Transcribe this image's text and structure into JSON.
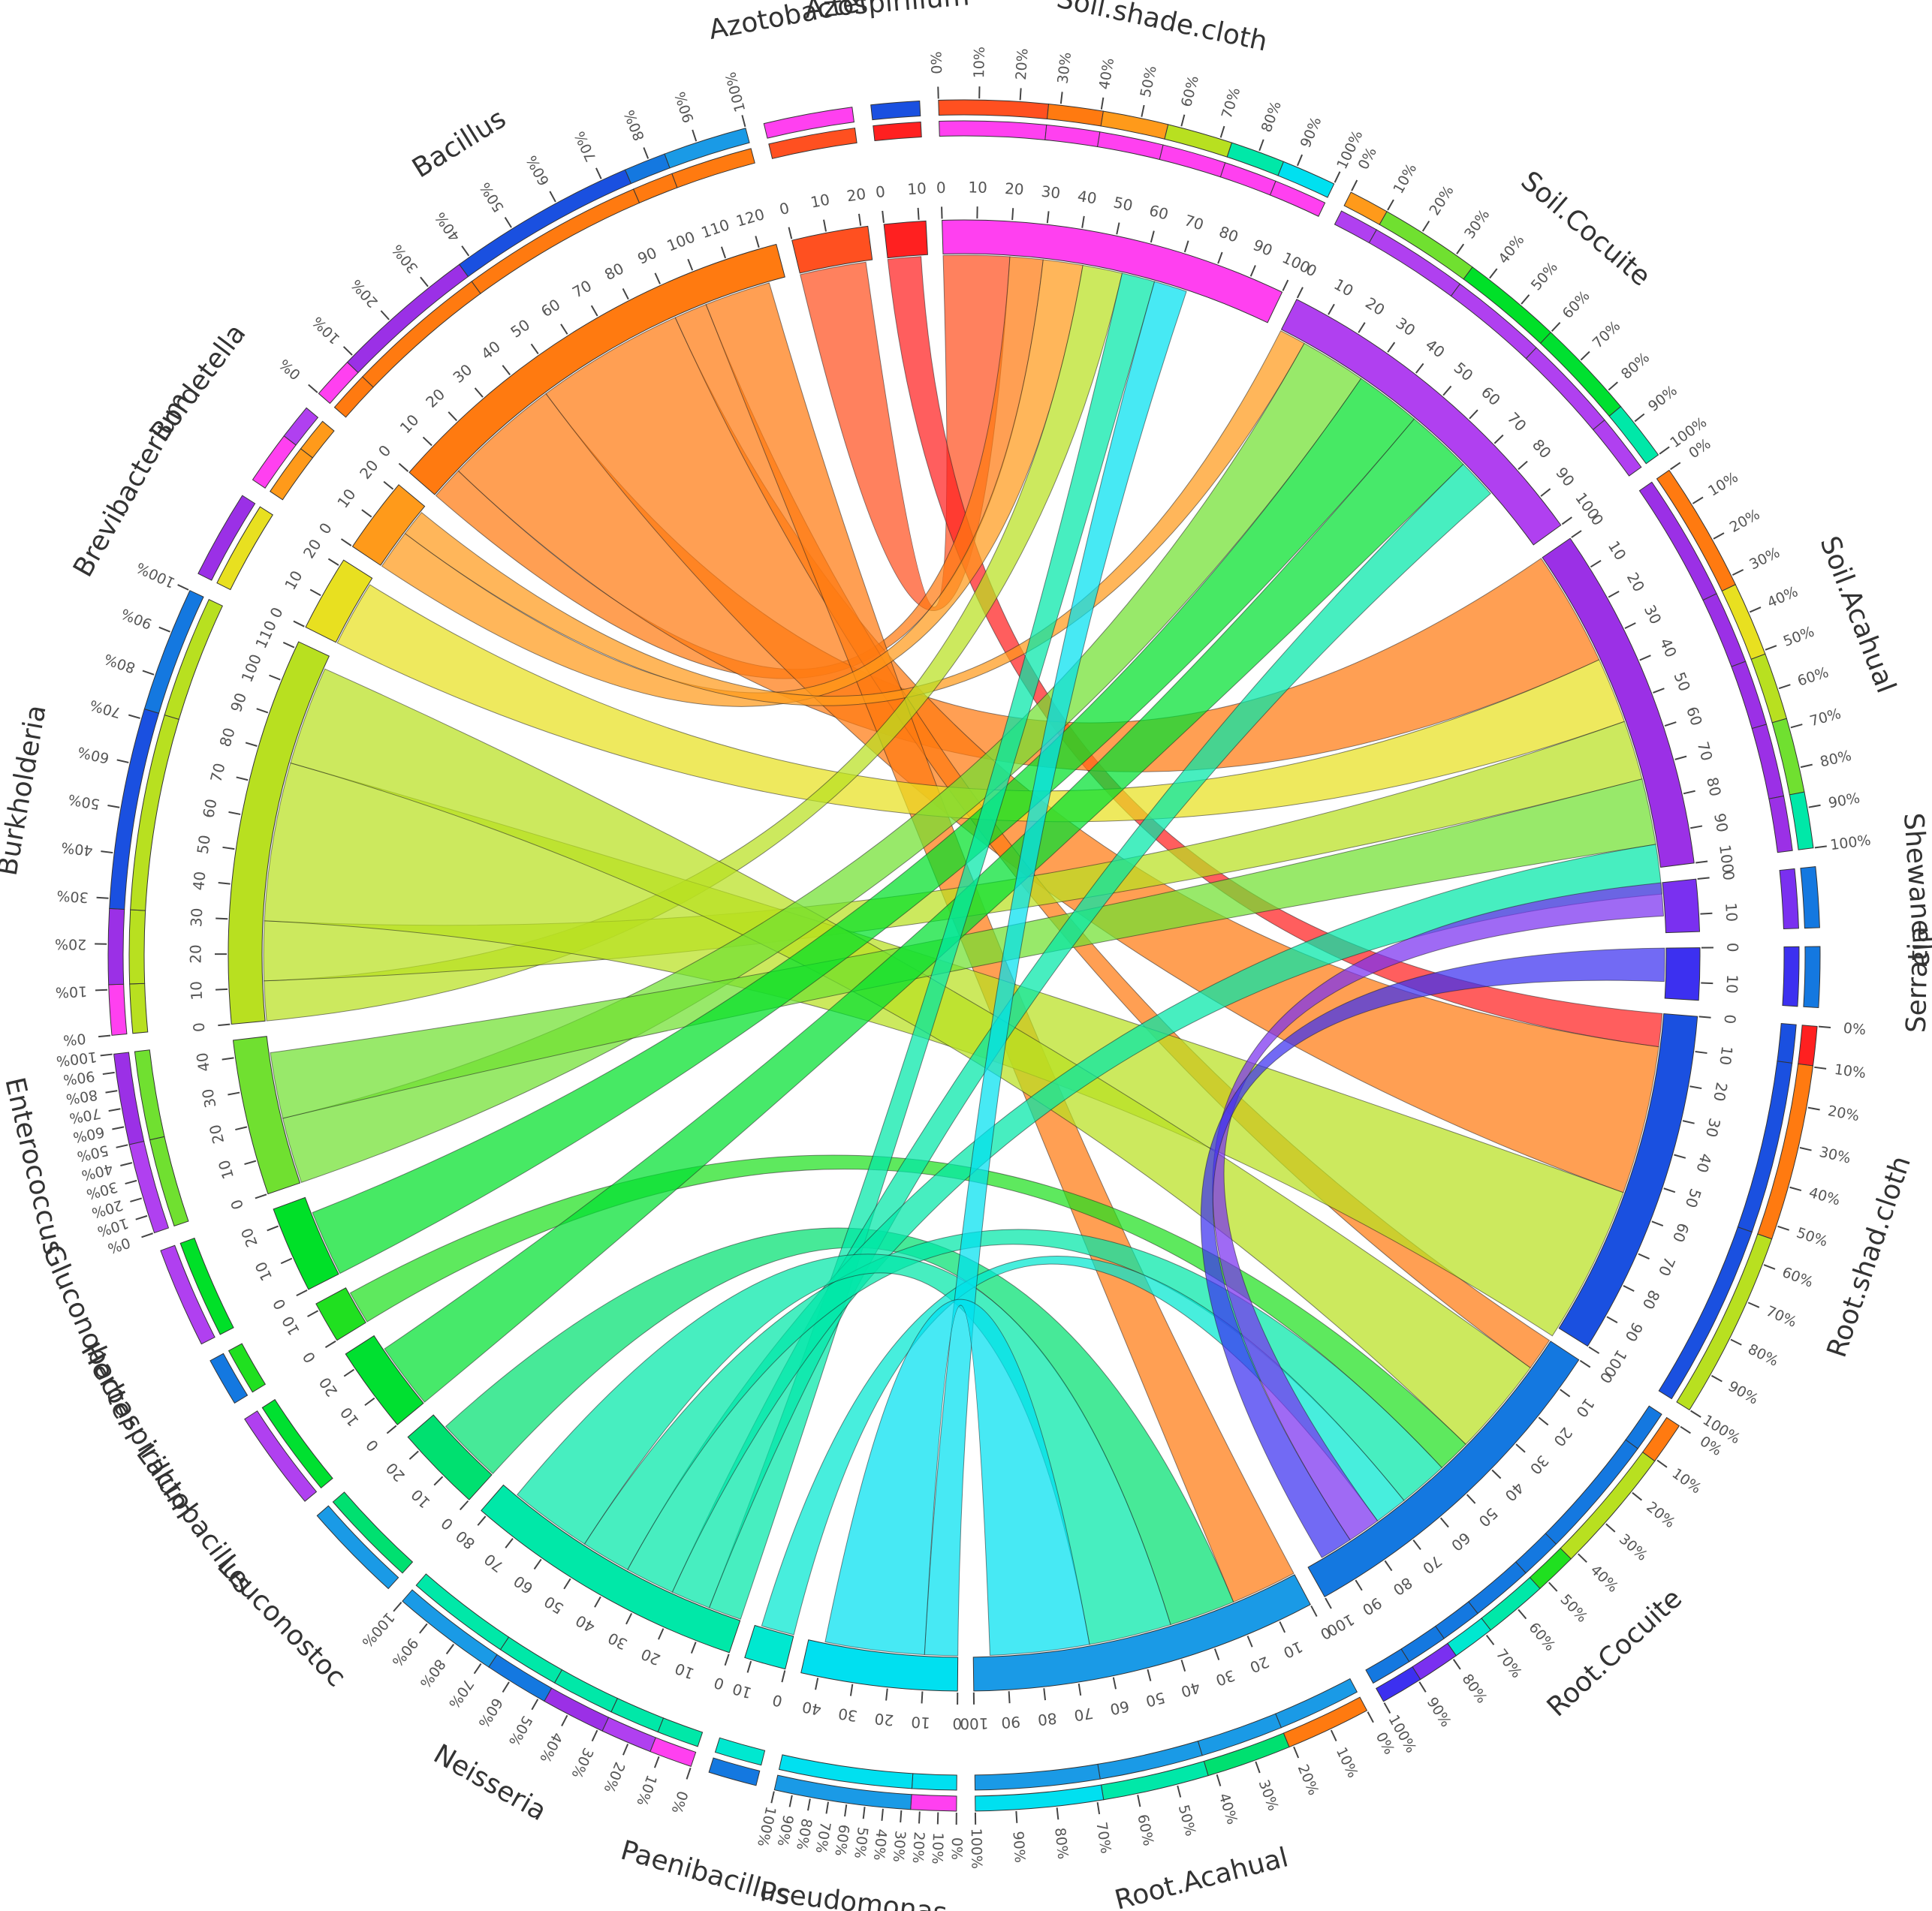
{
  "chart_data": {
    "type": "chord",
    "title": "",
    "segments": [
      {
        "id": "Soil.shade.cloth",
        "label": "Soil.shade.cloth",
        "group": "sample",
        "total": 100,
        "color": "#ff40f0"
      },
      {
        "id": "Soil.Cocuite",
        "label": "Soil.Cocuite",
        "group": "sample",
        "total": 100,
        "color": "#b040f0"
      },
      {
        "id": "Soil.Acahual",
        "label": "Soil.Acahual",
        "group": "sample",
        "total": 100,
        "color": "#9b30e6"
      },
      {
        "id": "Shewanella",
        "label": "Shewanella",
        "group": "genus",
        "total": 15,
        "color": "#7a30f0"
      },
      {
        "id": "Serratia",
        "label": "Serratia",
        "group": "genus",
        "total": 15,
        "color": "#3c30f0"
      },
      {
        "id": "Root.shad.cloth",
        "label": "Root.shad.cloth",
        "group": "sample",
        "total": 100,
        "color": "#1a50e0"
      },
      {
        "id": "Root.Cocuite",
        "label": "Root.Cocuite",
        "group": "sample",
        "total": 100,
        "color": "#1478e0"
      },
      {
        "id": "Root.Acahual",
        "label": "Root.Acahual",
        "group": "sample",
        "total": 100,
        "color": "#1a9ae6"
      },
      {
        "id": "Pseudomonas",
        "label": "Pseudomonas",
        "group": "genus",
        "total": 45,
        "color": "#00e0f0"
      },
      {
        "id": "Paenibacillus",
        "label": "Paenibacillus",
        "group": "genus",
        "total": 12,
        "color": "#00e8d0"
      },
      {
        "id": "Neisseria",
        "label": "Neisseria",
        "group": "genus",
        "total": 82,
        "color": "#00e8a8"
      },
      {
        "id": "Leuconostoc",
        "label": "Leuconostoc",
        "group": "genus",
        "total": 25,
        "color": "#00e070"
      },
      {
        "id": "Lactobacillus",
        "label": "Lactobacillus",
        "group": "genus",
        "total": 25,
        "color": "#00e030"
      },
      {
        "id": "Herbaspirillum",
        "label": "Herbaspirillum",
        "group": "genus",
        "total": 12,
        "color": "#20e020"
      },
      {
        "id": "Gluconobacter",
        "label": "Gluconobacter",
        "group": "genus",
        "total": 25,
        "color": "#00e028"
      },
      {
        "id": "Enterococcus",
        "label": "Enterococcus",
        "group": "genus",
        "total": 45,
        "color": "#70e030"
      },
      {
        "id": "Burkholderia",
        "label": "Burkholderia",
        "group": "genus",
        "total": 112,
        "color": "#b8e020"
      },
      {
        "id": "Brevibacterium",
        "label": "Brevibacterium",
        "group": "genus",
        "total": 22,
        "color": "#e8e020"
      },
      {
        "id": "Bordetella",
        "label": "Bordetella",
        "group": "genus",
        "total": 22,
        "color": "#ff9a1a"
      },
      {
        "id": "Bacillus",
        "label": "Bacillus",
        "group": "genus",
        "total": 125,
        "color": "#ff7a10"
      },
      {
        "id": "Azotobacter",
        "label": "Azotobacter",
        "group": "genus",
        "total": 22,
        "color": "#ff5020"
      },
      {
        "id": "Azospirillum",
        "label": "Azospirillum",
        "group": "genus",
        "total": 12,
        "color": "#ff2020"
      }
    ],
    "links": [
      {
        "source": "Azotobacter",
        "target": "Soil.shade.cloth",
        "value": 20
      },
      {
        "source": "Azospirillum",
        "target": "Root.shad.cloth",
        "value": 10
      },
      {
        "source": "Bacillus",
        "target": "Soil.shade.cloth",
        "value": 10
      },
      {
        "source": "Bacillus",
        "target": "Soil.Acahual",
        "value": 35
      },
      {
        "source": "Bacillus",
        "target": "Root.shad.cloth",
        "value": 45
      },
      {
        "source": "Bacillus",
        "target": "Root.Cocuite",
        "value": 10
      },
      {
        "source": "Bacillus",
        "target": "Root.Acahual",
        "value": 20
      },
      {
        "source": "Bordetella",
        "target": "Soil.shade.cloth",
        "value": 12
      },
      {
        "source": "Bordetella",
        "target": "Soil.Cocuite",
        "value": 8
      },
      {
        "source": "Brevibacterium",
        "target": "Soil.Acahual",
        "value": 20
      },
      {
        "source": "Burkholderia",
        "target": "Soil.shade.cloth",
        "value": 12
      },
      {
        "source": "Burkholderia",
        "target": "Soil.Acahual",
        "value": 18
      },
      {
        "source": "Burkholderia",
        "target": "Root.shad.cloth",
        "value": 48
      },
      {
        "source": "Burkholderia",
        "target": "Root.Cocuite",
        "value": 30
      },
      {
        "source": "Enterococcus",
        "target": "Soil.Cocuite",
        "value": 20
      },
      {
        "source": "Enterococcus",
        "target": "Soil.Acahual",
        "value": 20
      },
      {
        "source": "Gluconobacter",
        "target": "Soil.Cocuite",
        "value": 20
      },
      {
        "source": "Herbaspirillum",
        "target": "Root.Cocuite",
        "value": 10
      },
      {
        "source": "Lactobacillus",
        "target": "Soil.Cocuite",
        "value": 20
      },
      {
        "source": "Leuconostoc",
        "target": "Root.Acahual",
        "value": 20
      },
      {
        "source": "Neisseria",
        "target": "Soil.shade.cloth",
        "value": 10
      },
      {
        "source": "Neisseria",
        "target": "Soil.Cocuite",
        "value": 12
      },
      {
        "source": "Neisseria",
        "target": "Soil.Acahual",
        "value": 15
      },
      {
        "source": "Neisseria",
        "target": "Root.Cocuite",
        "value": 15
      },
      {
        "source": "Neisseria",
        "target": "Root.Acahual",
        "value": 25
      },
      {
        "source": "Paenibacillus",
        "target": "Root.Cocuite",
        "value": 10
      },
      {
        "source": "Pseudomonas",
        "target": "Soil.shade.cloth",
        "value": 10
      },
      {
        "source": "Pseudomonas",
        "target": "Root.Acahual",
        "value": 30
      },
      {
        "source": "Shewanella",
        "target": "Root.Cocuite",
        "value": 10
      },
      {
        "source": "Serratia",
        "target": "Root.Cocuite",
        "value": 10
      }
    ]
  }
}
